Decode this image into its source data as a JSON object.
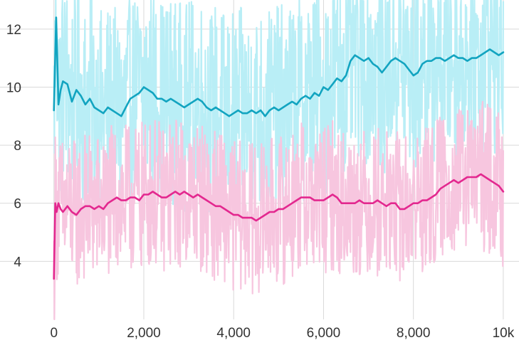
{
  "chart_data": {
    "type": "line",
    "title": "",
    "xlabel": "",
    "ylabel": "",
    "xlim": [
      -1200,
      10350
    ],
    "ylim": [
      2,
      13
    ],
    "x_ticks": [
      0,
      2000,
      4000,
      6000,
      8000,
      10000
    ],
    "x_tick_labels": [
      "0",
      "2,000",
      "4,000",
      "6,000",
      "8,000",
      "10k"
    ],
    "y_ticks": [
      4,
      6,
      8,
      10,
      12
    ],
    "y_tick_labels": [
      "4",
      "6",
      "8",
      "10",
      "12"
    ],
    "grid": true,
    "legend": "none",
    "series": [
      {
        "color": "#12a4c0",
        "raw_color": "#b9eef6",
        "x": [
          0,
          50,
          100,
          150,
          200,
          300,
          400,
          500,
          600,
          700,
          800,
          900,
          1000,
          1100,
          1200,
          1300,
          1400,
          1500,
          1600,
          1700,
          1800,
          1900,
          2000,
          2100,
          2200,
          2300,
          2400,
          2500,
          2600,
          2700,
          2800,
          2900,
          3000,
          3100,
          3200,
          3300,
          3400,
          3500,
          3600,
          3700,
          3800,
          3900,
          4000,
          4100,
          4200,
          4300,
          4400,
          4500,
          4600,
          4700,
          4800,
          4900,
          5000,
          5100,
          5200,
          5300,
          5400,
          5500,
          5600,
          5700,
          5800,
          5900,
          6000,
          6100,
          6200,
          6300,
          6400,
          6500,
          6600,
          6700,
          6800,
          6900,
          7000,
          7100,
          7200,
          7300,
          7400,
          7500,
          7600,
          7700,
          7800,
          7900,
          8000,
          8100,
          8200,
          8300,
          8400,
          8500,
          8600,
          8700,
          8800,
          8900,
          9000,
          9100,
          9200,
          9300,
          9400,
          9500,
          9600,
          9700,
          9800,
          9900,
          10000
        ],
        "values": [
          9.2,
          12.4,
          9.4,
          9.9,
          10.2,
          10.1,
          9.5,
          9.9,
          9.7,
          9.4,
          9.6,
          9.3,
          9.2,
          9.1,
          9.3,
          9.2,
          9.1,
          9.0,
          9.3,
          9.6,
          9.7,
          9.8,
          10.0,
          9.9,
          9.8,
          9.6,
          9.6,
          9.5,
          9.6,
          9.5,
          9.4,
          9.3,
          9.4,
          9.5,
          9.6,
          9.5,
          9.3,
          9.2,
          9.3,
          9.2,
          9.1,
          9.0,
          9.1,
          9.2,
          9.1,
          9.1,
          9.2,
          9.1,
          9.2,
          9.0,
          9.2,
          9.3,
          9.2,
          9.3,
          9.4,
          9.5,
          9.4,
          9.6,
          9.7,
          9.6,
          9.8,
          9.7,
          10.0,
          9.9,
          10.1,
          10.3,
          10.2,
          10.4,
          10.9,
          11.1,
          11.0,
          10.9,
          11.0,
          10.8,
          10.7,
          10.5,
          10.7,
          10.9,
          11.0,
          10.9,
          10.8,
          10.6,
          10.4,
          10.5,
          10.8,
          10.9,
          10.9,
          11.0,
          11.0,
          10.9,
          11.0,
          11.1,
          11.0,
          11.0,
          10.9,
          11.0,
          11.0,
          11.1,
          11.2,
          11.3,
          11.2,
          11.1,
          11.2
        ]
      },
      {
        "color": "#e3288f",
        "raw_color": "#f7c6df",
        "x": [
          0,
          30,
          60,
          100,
          150,
          200,
          300,
          400,
          500,
          600,
          700,
          800,
          900,
          1000,
          1100,
          1200,
          1300,
          1400,
          1500,
          1600,
          1700,
          1800,
          1900,
          2000,
          2100,
          2200,
          2300,
          2400,
          2500,
          2600,
          2700,
          2800,
          2900,
          3000,
          3100,
          3200,
          3300,
          3400,
          3500,
          3600,
          3700,
          3800,
          3900,
          4000,
          4100,
          4200,
          4300,
          4400,
          4500,
          4600,
          4700,
          4800,
          4900,
          5000,
          5100,
          5200,
          5300,
          5400,
          5500,
          5600,
          5700,
          5800,
          5900,
          6000,
          6100,
          6200,
          6300,
          6400,
          6500,
          6600,
          6700,
          6800,
          6900,
          7000,
          7100,
          7200,
          7300,
          7400,
          7500,
          7600,
          7700,
          7800,
          7900,
          8000,
          8100,
          8200,
          8300,
          8400,
          8500,
          8600,
          8700,
          8800,
          8900,
          9000,
          9100,
          9200,
          9300,
          9400,
          9500,
          9600,
          9700,
          9800,
          9900,
          10000
        ],
        "values": [
          3.4,
          6.0,
          5.7,
          6.0,
          5.8,
          5.7,
          5.9,
          5.7,
          5.6,
          5.8,
          5.9,
          5.9,
          5.8,
          5.9,
          5.8,
          6.0,
          6.1,
          6.2,
          6.1,
          6.1,
          6.2,
          6.2,
          6.1,
          6.3,
          6.3,
          6.4,
          6.3,
          6.2,
          6.2,
          6.3,
          6.4,
          6.3,
          6.4,
          6.3,
          6.2,
          6.3,
          6.2,
          6.1,
          6.0,
          5.9,
          5.9,
          5.8,
          5.7,
          5.6,
          5.6,
          5.5,
          5.5,
          5.5,
          5.4,
          5.5,
          5.6,
          5.7,
          5.7,
          5.8,
          5.8,
          5.9,
          6.0,
          6.1,
          6.2,
          6.2,
          6.2,
          6.1,
          6.1,
          6.1,
          6.2,
          6.3,
          6.2,
          6.0,
          6.0,
          6.0,
          6.0,
          6.1,
          6.0,
          6.0,
          6.0,
          6.1,
          6.0,
          5.9,
          6.0,
          6.0,
          5.8,
          5.8,
          5.9,
          6.0,
          6.0,
          6.1,
          6.1,
          6.2,
          6.3,
          6.5,
          6.6,
          6.7,
          6.8,
          6.7,
          6.8,
          6.9,
          6.9,
          6.9,
          7.0,
          6.9,
          6.8,
          6.7,
          6.6,
          6.4
        ]
      }
    ]
  }
}
